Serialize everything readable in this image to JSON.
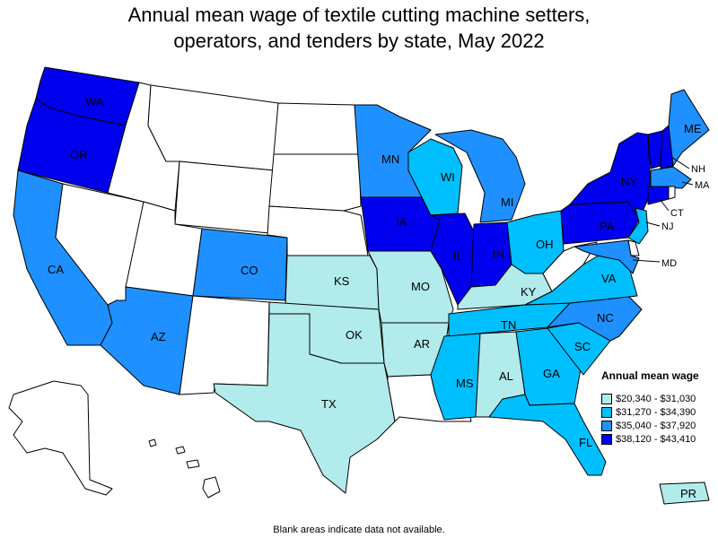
{
  "title_line1": "Annual mean wage of textile cutting machine setters,",
  "title_line2": "operators, and tenders by state, May 2022",
  "legend": {
    "title": "Annual mean wage",
    "items": [
      {
        "label": "$20,340 - $31,030",
        "color": "#b2ebeb"
      },
      {
        "label": "$31,270 - $34,390",
        "color": "#00bfff"
      },
      {
        "label": "$35,040 - $37,920",
        "color": "#1e90ff"
      },
      {
        "label": "$38,120 - $43,410",
        "color": "#0000ee"
      }
    ]
  },
  "no_data_color": "#ffffff",
  "footnote": "Blank areas indicate data not available.",
  "states": {
    "WA": {
      "label": "WA",
      "bin": 3
    },
    "OR": {
      "label": "OR",
      "bin": 3
    },
    "CA": {
      "label": "CA",
      "bin": 2
    },
    "NV": {
      "label": "",
      "bin": null
    },
    "ID": {
      "label": "",
      "bin": null
    },
    "MT": {
      "label": "",
      "bin": null
    },
    "WY": {
      "label": "",
      "bin": null
    },
    "UT": {
      "label": "",
      "bin": null
    },
    "AZ": {
      "label": "AZ",
      "bin": 2
    },
    "CO": {
      "label": "CO",
      "bin": 2
    },
    "NM": {
      "label": "",
      "bin": null
    },
    "ND": {
      "label": "",
      "bin": null
    },
    "SD": {
      "label": "",
      "bin": null
    },
    "NE": {
      "label": "",
      "bin": null
    },
    "KS": {
      "label": "KS",
      "bin": 0
    },
    "OK": {
      "label": "OK",
      "bin": 0
    },
    "TX": {
      "label": "TX",
      "bin": 0
    },
    "MN": {
      "label": "MN",
      "bin": 2
    },
    "IA": {
      "label": "IA",
      "bin": 3
    },
    "MO": {
      "label": "MO",
      "bin": 0
    },
    "AR": {
      "label": "AR",
      "bin": 0
    },
    "LA": {
      "label": "",
      "bin": null
    },
    "WI": {
      "label": "WI",
      "bin": 1
    },
    "IL": {
      "label": "IL",
      "bin": 3
    },
    "MI": {
      "label": "MI",
      "bin": 2
    },
    "IN": {
      "label": "IN",
      "bin": 3
    },
    "OH": {
      "label": "OH",
      "bin": 1
    },
    "KY": {
      "label": "KY",
      "bin": 0
    },
    "TN": {
      "label": "TN",
      "bin": 1
    },
    "MS": {
      "label": "MS",
      "bin": 1
    },
    "AL": {
      "label": "AL",
      "bin": 0
    },
    "GA": {
      "label": "GA",
      "bin": 1
    },
    "FL": {
      "label": "FL",
      "bin": 1
    },
    "SC": {
      "label": "SC",
      "bin": 1
    },
    "NC": {
      "label": "NC",
      "bin": 2
    },
    "VA": {
      "label": "VA",
      "bin": 1
    },
    "WV": {
      "label": "",
      "bin": null
    },
    "PA": {
      "label": "PA",
      "bin": 3
    },
    "NY": {
      "label": "NY",
      "bin": 3
    },
    "VT": {
      "label": "",
      "bin": 3
    },
    "NH": {
      "label": "NH",
      "bin": 3
    },
    "ME": {
      "label": "ME",
      "bin": 2
    },
    "MA": {
      "label": "MA",
      "bin": 2
    },
    "CT": {
      "label": "CT",
      "bin": 3
    },
    "RI": {
      "label": "",
      "bin": null
    },
    "NJ": {
      "label": "NJ",
      "bin": 1
    },
    "DE": {
      "label": "",
      "bin": null
    },
    "MD": {
      "label": "MD",
      "bin": 2
    },
    "AK": {
      "label": "",
      "bin": null
    },
    "HI": {
      "label": "",
      "bin": null
    },
    "PR": {
      "label": "PR",
      "bin": 0
    }
  }
}
